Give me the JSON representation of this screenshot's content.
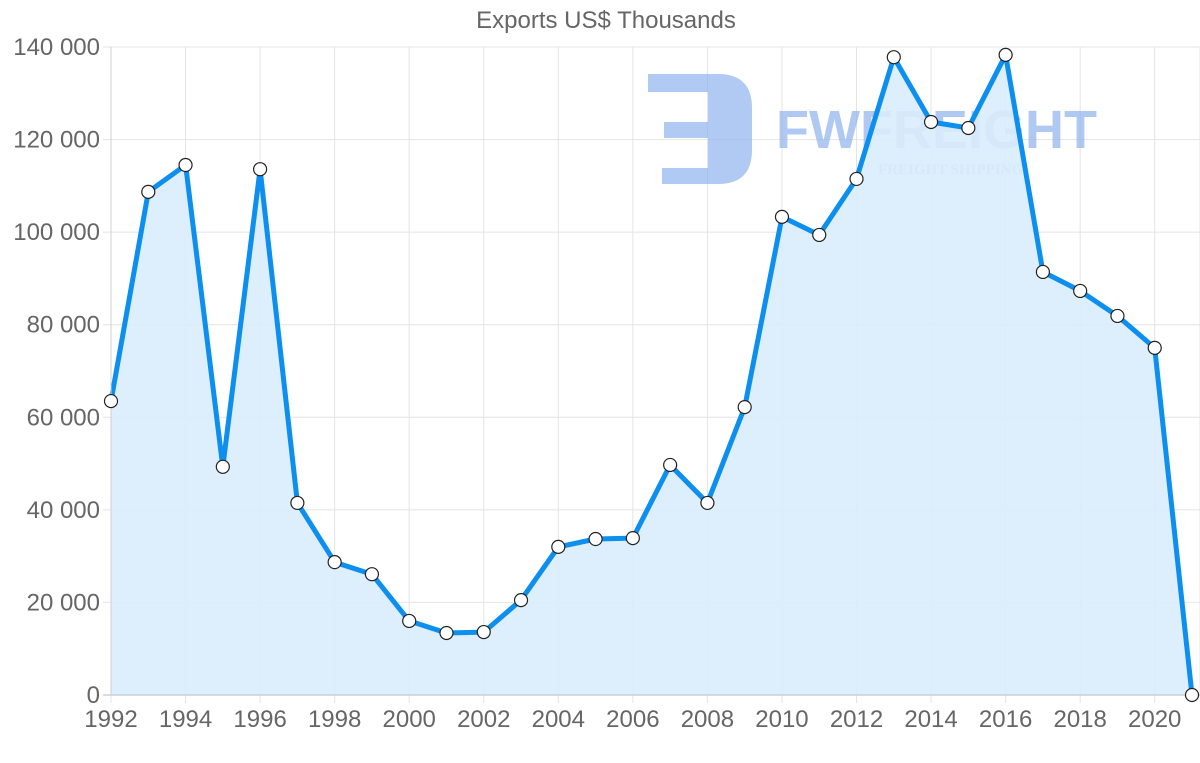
{
  "chart_data": {
    "type": "line",
    "title": "Exports US$ Thousands",
    "xlabel": "",
    "ylabel": "",
    "x": [
      1992,
      1993,
      1994,
      1995,
      1996,
      1997,
      1998,
      1999,
      2000,
      2001,
      2002,
      2003,
      2004,
      2005,
      2006,
      2007,
      2008,
      2009,
      2010,
      2011,
      2012,
      2013,
      2014,
      2015,
      2016,
      2017,
      2018,
      2019,
      2020,
      2021
    ],
    "series": [
      {
        "name": "Exports US$ Thousands",
        "values": [
          63500,
          108700,
          114500,
          49300,
          113600,
          41500,
          28700,
          26100,
          16000,
          13400,
          13600,
          20500,
          32000,
          33700,
          33900,
          49700,
          41500,
          62200,
          103300,
          99400,
          111500,
          137800,
          123800,
          122500,
          138300,
          91400,
          87300,
          81900,
          75000,
          0
        ],
        "line_color": "#0d8ff0",
        "fill_color": "#d9ecfc",
        "fill": true
      }
    ],
    "xticks": [
      "1992",
      "1994",
      "1996",
      "1998",
      "2000",
      "2002",
      "2004",
      "2006",
      "2008",
      "2010",
      "2012",
      "2014",
      "2016",
      "2018",
      "2020"
    ],
    "yticks": [
      "0",
      "20 000",
      "40 000",
      "60 000",
      "80 000",
      "100 000",
      "120 000",
      "140 000"
    ],
    "ylim": [
      0,
      140000
    ],
    "xlim": [
      1992,
      2021
    ],
    "grid": true,
    "legend": "none"
  },
  "watermark": {
    "brand": "FWFREIGHT",
    "tagline": "FREIGHT SHIPPING",
    "color": "#8fb3ee"
  }
}
